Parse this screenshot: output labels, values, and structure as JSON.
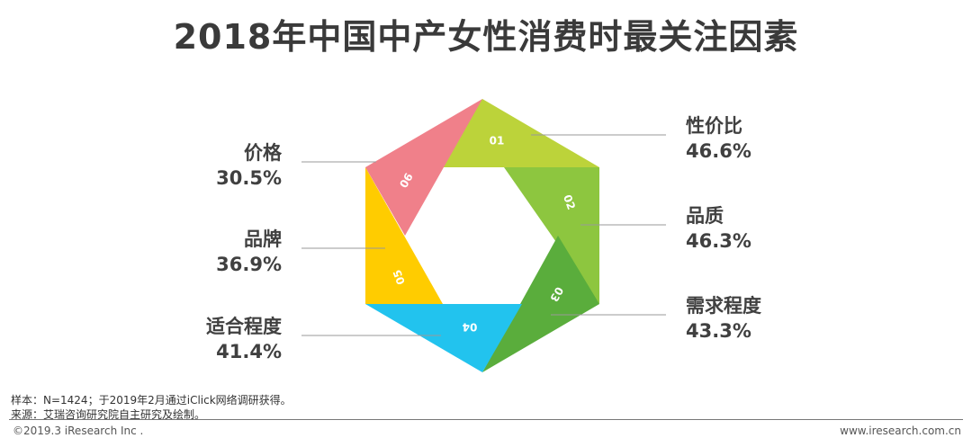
{
  "title": "2018年中国中产女性消费时最关注因素",
  "chart_data": {
    "type": "pie",
    "segments": [
      {
        "num": "01",
        "name": "性价比",
        "value": 46.6,
        "value_label": "46.6%",
        "color": "#bcd33a"
      },
      {
        "num": "02",
        "name": "品质",
        "value": 46.3,
        "value_label": "46.3%",
        "color": "#8dc63f"
      },
      {
        "num": "03",
        "name": "需求程度",
        "value": 43.3,
        "value_label": "43.3%",
        "color": "#5aad3c"
      },
      {
        "num": "04",
        "name": "适合程度",
        "value": 41.4,
        "value_label": "41.4%",
        "color": "#22c3ee"
      },
      {
        "num": "05",
        "name": "品牌",
        "value": 36.9,
        "value_label": "36.9%",
        "color": "#ffcc00"
      },
      {
        "num": "06",
        "name": "价格",
        "value": 30.5,
        "value_label": "30.5%",
        "color": "#f0808a"
      }
    ]
  },
  "notes": {
    "sample": "样本：N=1424；于2019年2月通过iClick网络调研获得。",
    "source": "来源：艾瑞咨询研究院自主研究及绘制。"
  },
  "footer": {
    "left": "©2019.3 iResearch Inc .",
    "right": "www.iresearch.com.cn"
  }
}
